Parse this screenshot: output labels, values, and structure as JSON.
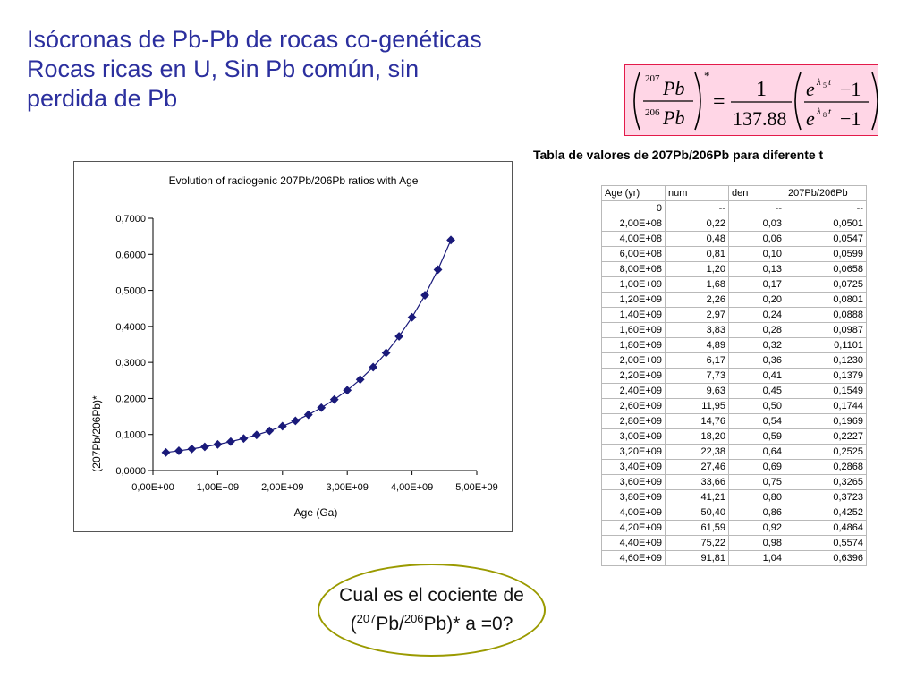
{
  "title": {
    "line1": "Isócronas de Pb-Pb de rocas co-genéticas",
    "line2": "Rocas ricas en U, Sin Pb común, sin",
    "line3": "perdida de  Pb"
  },
  "formula": {
    "num_sup": "207",
    "den_sup": "206",
    "element": "Pb",
    "star": "*",
    "equals": "=",
    "one": "1",
    "constant": "137.88",
    "e": "e",
    "lambda5": "λ",
    "lambda5_sub": "5",
    "lambda8_sub": "8",
    "t": "t",
    "minus_one": "−1"
  },
  "table": {
    "caption": "Tabla de valores de 207Pb/206Pb para diferente t",
    "headers": [
      "Age (yr)",
      "num",
      "den",
      "207Pb/206Pb"
    ],
    "rows": [
      [
        "0",
        "--",
        "--",
        "--"
      ],
      [
        "2,00E+08",
        "0,22",
        "0,03",
        "0,0501"
      ],
      [
        "4,00E+08",
        "0,48",
        "0,06",
        "0,0547"
      ],
      [
        "6,00E+08",
        "0,81",
        "0,10",
        "0,0599"
      ],
      [
        "8,00E+08",
        "1,20",
        "0,13",
        "0,0658"
      ],
      [
        "1,00E+09",
        "1,68",
        "0,17",
        "0,0725"
      ],
      [
        "1,20E+09",
        "2,26",
        "0,20",
        "0,0801"
      ],
      [
        "1,40E+09",
        "2,97",
        "0,24",
        "0,0888"
      ],
      [
        "1,60E+09",
        "3,83",
        "0,28",
        "0,0987"
      ],
      [
        "1,80E+09",
        "4,89",
        "0,32",
        "0,1101"
      ],
      [
        "2,00E+09",
        "6,17",
        "0,36",
        "0,1230"
      ],
      [
        "2,20E+09",
        "7,73",
        "0,41",
        "0,1379"
      ],
      [
        "2,40E+09",
        "9,63",
        "0,45",
        "0,1549"
      ],
      [
        "2,60E+09",
        "11,95",
        "0,50",
        "0,1744"
      ],
      [
        "2,80E+09",
        "14,76",
        "0,54",
        "0,1969"
      ],
      [
        "3,00E+09",
        "18,20",
        "0,59",
        "0,2227"
      ],
      [
        "3,20E+09",
        "22,38",
        "0,64",
        "0,2525"
      ],
      [
        "3,40E+09",
        "27,46",
        "0,69",
        "0,2868"
      ],
      [
        "3,60E+09",
        "33,66",
        "0,75",
        "0,3265"
      ],
      [
        "3,80E+09",
        "41,21",
        "0,80",
        "0,3723"
      ],
      [
        "4,00E+09",
        "50,40",
        "0,86",
        "0,4252"
      ],
      [
        "4,20E+09",
        "61,59",
        "0,92",
        "0,4864"
      ],
      [
        "4,40E+09",
        "75,22",
        "0,98",
        "0,5574"
      ],
      [
        "4,60E+09",
        "91,81",
        "1,04",
        "0,6396"
      ]
    ]
  },
  "chart_data": {
    "type": "line",
    "title": "Evolution of radiogenic 207Pb/206Pb ratios with Age",
    "xlabel": "Age (Ga)",
    "ylabel": "(207Pb/206Pb)*",
    "xlim": [
      0,
      5000000000
    ],
    "ylim": [
      0,
      0.7
    ],
    "x_ticks": [
      0,
      1000000000,
      2000000000,
      3000000000,
      4000000000,
      5000000000
    ],
    "x_tick_labels": [
      "0,00E+00",
      "1,00E+09",
      "2,00E+09",
      "3,00E+09",
      "4,00E+09",
      "5,00E+09"
    ],
    "y_ticks": [
      0,
      0.1,
      0.2,
      0.3,
      0.4,
      0.5,
      0.6,
      0.7
    ],
    "y_tick_labels": [
      "0,0000",
      "0,1000",
      "0,2000",
      "0,3000",
      "0,4000",
      "0,5000",
      "0,6000",
      "0,7000"
    ],
    "grid": false,
    "series_color": "#1a1a7a",
    "marker": "diamond",
    "x": [
      200000000,
      400000000,
      600000000,
      800000000,
      1000000000,
      1200000000,
      1400000000,
      1600000000,
      1800000000,
      2000000000,
      2200000000,
      2400000000,
      2600000000,
      2800000000,
      3000000000,
      3200000000,
      3400000000,
      3600000000,
      3800000000,
      4000000000,
      4200000000,
      4400000000,
      4600000000
    ],
    "y": [
      0.0501,
      0.0547,
      0.0599,
      0.0658,
      0.0725,
      0.0801,
      0.0888,
      0.0987,
      0.1101,
      0.123,
      0.1379,
      0.1549,
      0.1744,
      0.1969,
      0.2227,
      0.2525,
      0.2868,
      0.3265,
      0.3723,
      0.4252,
      0.4864,
      0.5574,
      0.6396
    ]
  },
  "question": {
    "line1": "Cual es el cociente de",
    "open": "(",
    "sup1": "207",
    "pb1": "Pb/",
    "sup2": "206",
    "pb2": "Pb)* a =0?"
  },
  "colors": {
    "title": "#2b2f9e",
    "formula_bg": "#ffd6e6",
    "formula_border": "#e31a4a",
    "series": "#1a1a7a",
    "oval_border": "#9a9a00"
  }
}
